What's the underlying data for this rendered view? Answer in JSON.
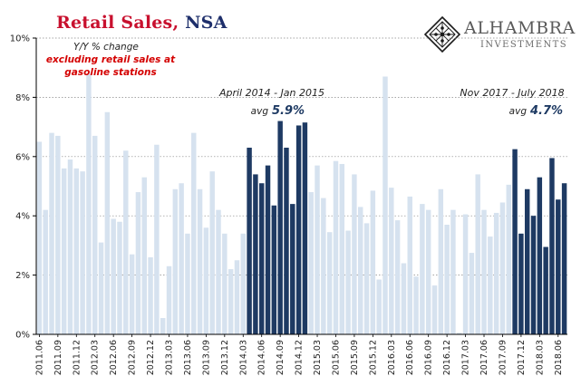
{
  "header": {
    "title_part1": "Retail Sales,",
    "title_part2": " NSA"
  },
  "logo": {
    "name": "ALHAMBRA",
    "subtitle": "INVESTMENTS",
    "icon": "diamond-lattice-icon"
  },
  "colors": {
    "light_bar": "#d6e2ef",
    "dark_bar": "#1e3a63",
    "title_red": "#c8102e",
    "title_navy": "#1e2f6b",
    "annotation_red": "#d40000",
    "annotation_navy": "#1e3a63"
  },
  "annotations": {
    "yy_label": "Y/Y % change",
    "red_line1": "excluding retail sales at",
    "red_line2": "gasoline stations",
    "period1_label": "April 2014 - Jan 2015",
    "period1_avg_prefix": "avg",
    "period1_avg_value": "5.9%",
    "period2_label": "Nov 2017 - July 2018",
    "period2_avg_prefix": "avg",
    "period2_avg_value": "4.7%"
  },
  "chart_data": {
    "type": "bar",
    "title": "Retail Sales, NSA",
    "ylabel": "Y/Y % change",
    "ylim": [
      0,
      10
    ],
    "yticks": [
      "0%",
      "2%",
      "4%",
      "6%",
      "8%",
      "10%"
    ],
    "x_start": "2011-06",
    "x_end": "2018-07",
    "x_tick_labels": [
      "2011.06",
      "2011.09",
      "2011.12",
      "2012.03",
      "2012.06",
      "2012.09",
      "2012.12",
      "2013.03",
      "2013.06",
      "2013.09",
      "2013.12",
      "2014.03",
      "2014.06",
      "2014.09",
      "2014.12",
      "2015.03",
      "2015.06",
      "2015.09",
      "2015.12",
      "2016.03",
      "2016.06",
      "2016.09",
      "2016.12",
      "2017.03",
      "2017.06",
      "2017.09",
      "2017.12",
      "2018.03",
      "2018.06"
    ],
    "highlight_periods": [
      [
        "2014-04",
        "2015-01"
      ],
      [
        "2017-11",
        "2018-07"
      ]
    ],
    "values": [
      6.5,
      4.2,
      6.8,
      6.7,
      5.6,
      5.9,
      5.6,
      5.5,
      8.8,
      6.7,
      3.1,
      7.5,
      3.9,
      3.8,
      6.2,
      2.7,
      4.8,
      5.3,
      2.6,
      6.4,
      0.55,
      2.3,
      4.9,
      5.1,
      3.4,
      6.8,
      4.9,
      3.6,
      5.5,
      4.2,
      3.4,
      2.2,
      2.5,
      3.4,
      6.3,
      5.4,
      5.1,
      5.7,
      4.35,
      7.2,
      6.3,
      4.4,
      7.05,
      7.15,
      4.8,
      5.7,
      4.6,
      3.45,
      5.85,
      5.75,
      3.5,
      5.4,
      4.3,
      3.75,
      4.85,
      1.85,
      8.7,
      4.95,
      3.85,
      2.4,
      4.65,
      1.95,
      4.4,
      4.2,
      1.65,
      4.9,
      3.7,
      4.2,
      0.05,
      4.05,
      2.75,
      5.4,
      4.2,
      3.3,
      4.1,
      4.45,
      5.05,
      6.25,
      3.4,
      4.9,
      4.0,
      5.3,
      2.95,
      5.95,
      4.55,
      5.1
    ]
  }
}
